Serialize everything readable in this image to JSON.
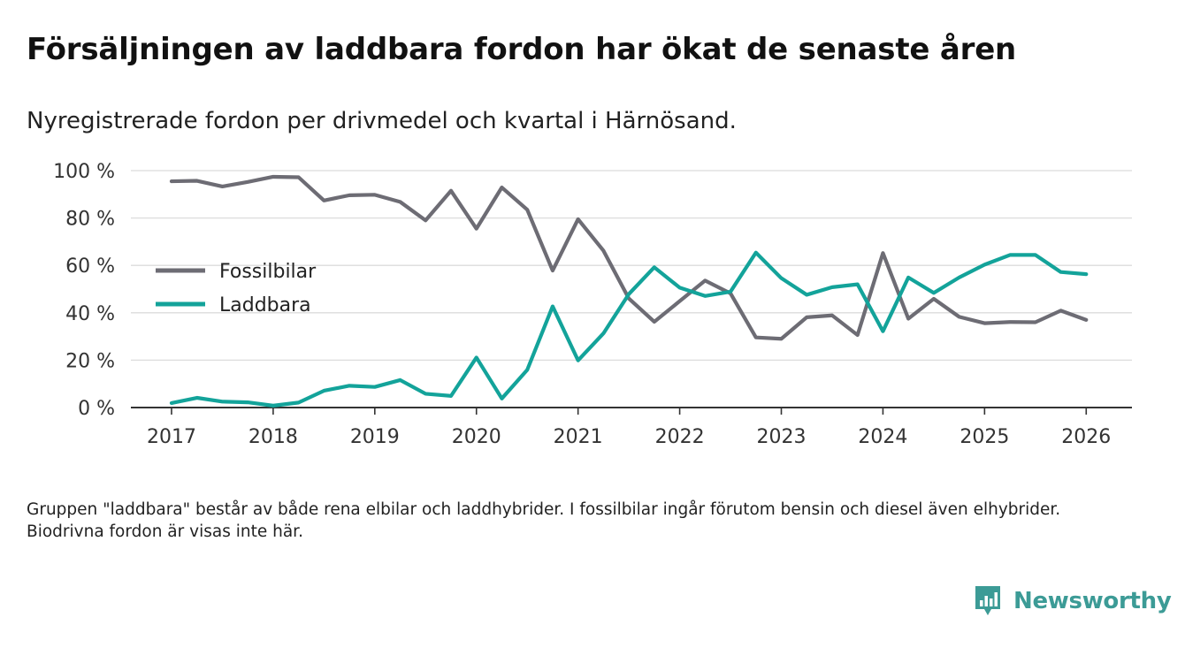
{
  "title": "Försäljningen av laddbara fordon har ökat de senaste åren",
  "subtitle": "Nyregistrerade fordon per drivmedel och kvartal i Härnösand.",
  "note": "Gruppen \"laddbara\" består av både rena elbilar och laddhybrider. I fossilbilar ingår förutom bensin och diesel även elhybrider. Biodrivna fordon är visas inte här.",
  "brand": {
    "name": "Newsworthy",
    "color": "#3c9b96"
  },
  "chart_data": {
    "type": "line",
    "title": "Försäljningen av laddbara fordon har ökat de senaste åren",
    "subtitle": "Nyregistrerade fordon per drivmedel och kvartal i Härnösand.",
    "xlabel": "",
    "ylabel": "",
    "xlim": [
      2016.6,
      2026.45
    ],
    "ylim": [
      0,
      100
    ],
    "x_ticks": [
      2017,
      2018,
      2019,
      2020,
      2021,
      2022,
      2023,
      2024,
      2025,
      2026
    ],
    "x_tick_labels": [
      "2017",
      "2018",
      "2019",
      "2020",
      "2021",
      "2022",
      "2023",
      "2024",
      "2025",
      "2026"
    ],
    "y_ticks": [
      0,
      20,
      40,
      60,
      80,
      100
    ],
    "y_tick_labels": [
      "0 %",
      "20 %",
      "40 %",
      "60 %",
      "80 %",
      "100 %"
    ],
    "grid": true,
    "legend_position": "center-left",
    "x": [
      2017,
      2017.25,
      2017.5,
      2017.75,
      2018,
      2018.25,
      2018.5,
      2018.75,
      2019,
      2019.25,
      2019.5,
      2019.75,
      2020,
      2020.25,
      2020.5,
      2020.75,
      2021,
      2021.25,
      2021.5,
      2021.75,
      2022,
      2022.25,
      2022.5,
      2022.75,
      2023,
      2023.25,
      2023.5,
      2023.75,
      2024,
      2024.25,
      2024.5,
      2024.75,
      2025,
      2025.25,
      2025.5,
      2025.75,
      2026
    ],
    "series": [
      {
        "name": "Fossilbilar",
        "color": "#6d6c74",
        "values": [
          95.5,
          95.7,
          93.3,
          95.2,
          97.4,
          97.2,
          87.4,
          89.6,
          89.8,
          86.8,
          79.0,
          91.5,
          75.5,
          92.9,
          83.5,
          57.8,
          79.5,
          66.2,
          46.0,
          36.2,
          44.9,
          53.6,
          48.2,
          29.6,
          29.0,
          38.1,
          38.9,
          30.6,
          65.2,
          37.5,
          45.9,
          38.3,
          35.6,
          36.1,
          36.0,
          40.9,
          37.0
        ]
      },
      {
        "name": "Laddbara",
        "color": "#13a39a",
        "values": [
          1.9,
          4.1,
          2.5,
          2.2,
          0.8,
          2.1,
          7.1,
          9.2,
          8.7,
          11.6,
          5.8,
          4.9,
          21.1,
          3.8,
          15.9,
          42.7,
          19.9,
          31.3,
          47.9,
          59.2,
          50.6,
          47.1,
          48.9,
          65.4,
          54.6,
          47.6,
          50.8,
          52.0,
          32.2,
          54.9,
          48.4,
          54.9,
          60.3,
          64.4,
          64.4,
          57.2,
          56.3
        ]
      }
    ]
  }
}
